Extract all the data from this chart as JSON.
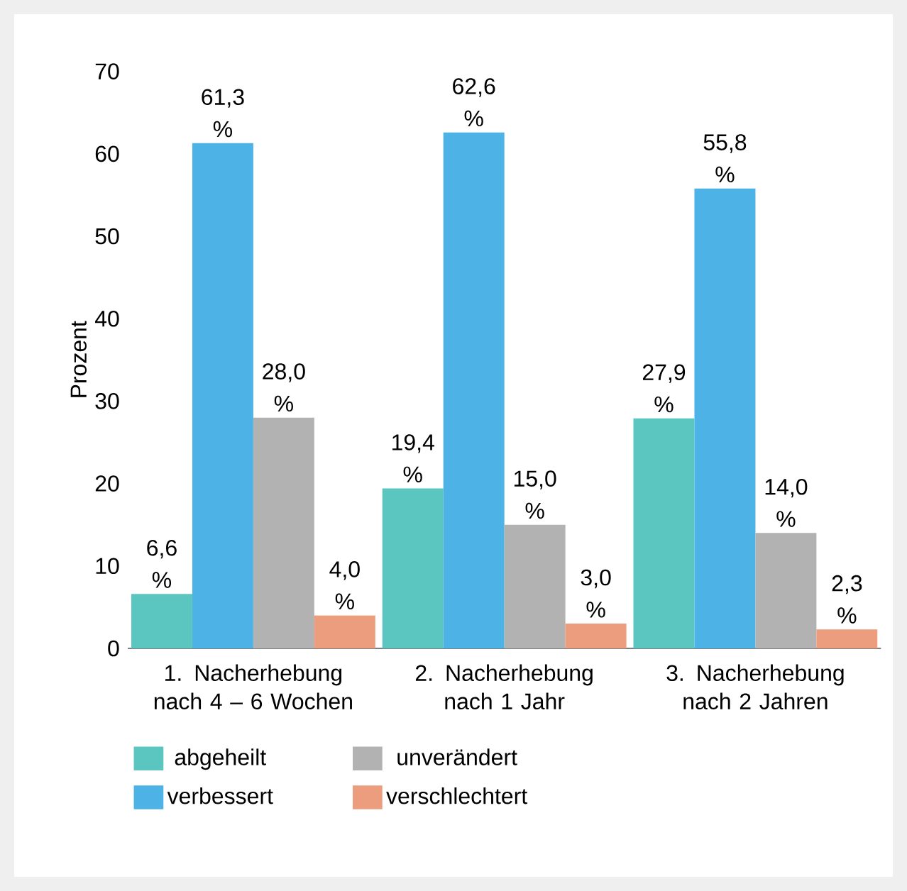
{
  "chart_data": {
    "type": "bar",
    "ylabel": "Prozent",
    "categories": [
      "1. Nacherhebung nach 4 – 6 Wochen",
      "2. Nacherhebung nach 1 Jahr",
      "3. Nacherhebung nach 2 Jahren"
    ],
    "series": [
      {
        "name": "abgeheilt",
        "color": "#5bc5bf",
        "values": [
          6.6,
          19.4,
          27.9
        ],
        "value_labels": [
          "6,6 %",
          "19,4 %",
          "27,9 %"
        ]
      },
      {
        "name": "verbessert",
        "color": "#4db3e6",
        "values": [
          61.3,
          62.6,
          55.8
        ],
        "value_labels": [
          "61,3 %",
          "62,6 %",
          "55,8 %"
        ]
      },
      {
        "name": "unverändert",
        "color": "#b2b2b2",
        "values": [
          28.0,
          15.0,
          14.0
        ],
        "value_labels": [
          "28,0 %",
          "15,0 %",
          "14,0 %"
        ]
      },
      {
        "name": "verschlechtert",
        "color": "#ec9d7e",
        "values": [
          4.0,
          3.0,
          2.3
        ],
        "value_labels": [
          "4,0 %",
          "3,0 %",
          "2,3 %"
        ]
      }
    ],
    "ylim": [
      0,
      70
    ],
    "yticks": [
      0,
      10,
      20,
      30,
      40,
      50,
      60,
      70
    ],
    "grid": false,
    "legend": "bottom"
  }
}
